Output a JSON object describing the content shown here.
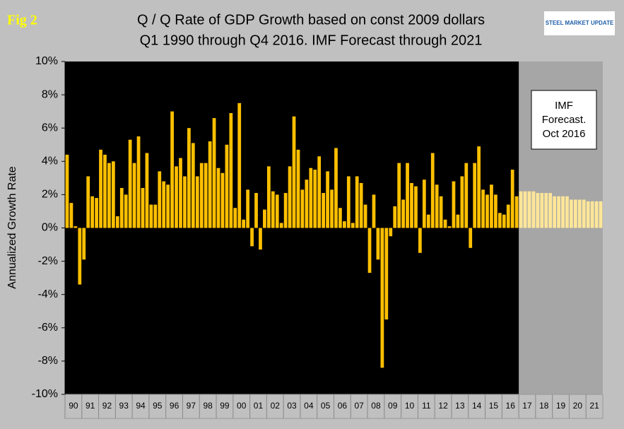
{
  "chart_data": {
    "type": "bar",
    "figure_label": "Fig 2",
    "logo": "STEEL MARKET UPDATE",
    "title": "Q / Q Rate of GDP Growth based on const 2009 dollars",
    "subtitle": "Q1 1990 through Q4 2016. IMF Forecast through 2021",
    "y_label": "Annualized Growth Rate",
    "annotation": [
      "IMF",
      "Forecast.",
      "Oct 2016"
    ],
    "ylim": [
      -10,
      10
    ],
    "yticks": [
      {
        "value": -10,
        "label": "-10%"
      },
      {
        "value": -8,
        "label": "-8%"
      },
      {
        "value": -6,
        "label": "-6%"
      },
      {
        "value": -4,
        "label": "-4%"
      },
      {
        "value": -2,
        "label": "-2%"
      },
      {
        "value": 0,
        "label": "0%"
      },
      {
        "value": 2,
        "label": "2%"
      },
      {
        "value": 4,
        "label": "4%"
      },
      {
        "value": 6,
        "label": "6%"
      },
      {
        "value": 8,
        "label": "8%"
      },
      {
        "value": 10,
        "label": "10%"
      }
    ],
    "categories": [
      "90",
      null,
      null,
      null,
      "91",
      null,
      null,
      null,
      "92",
      null,
      null,
      null,
      "93",
      null,
      null,
      null,
      "94",
      null,
      null,
      null,
      "95",
      null,
      null,
      null,
      "96",
      null,
      null,
      null,
      "97",
      null,
      null,
      null,
      "98",
      null,
      null,
      null,
      "99",
      null,
      null,
      null,
      "00",
      null,
      null,
      null,
      "01",
      null,
      null,
      null,
      "02",
      null,
      null,
      null,
      "03",
      null,
      null,
      null,
      "04",
      null,
      null,
      null,
      "05",
      null,
      null,
      null,
      "06",
      null,
      null,
      null,
      "07",
      null,
      null,
      null,
      "08",
      null,
      null,
      null,
      "09",
      null,
      null,
      null,
      "10",
      null,
      null,
      null,
      "11",
      null,
      null,
      null,
      "12",
      null,
      null,
      null,
      "13",
      null,
      null,
      null,
      "14",
      null,
      null,
      null,
      "15",
      null,
      null,
      null,
      "16",
      null,
      null,
      null,
      "17",
      null,
      null,
      null,
      "18",
      null,
      null,
      null,
      "19",
      null,
      null,
      null,
      "20",
      null,
      null,
      null,
      "21",
      null,
      null,
      null
    ],
    "series": [
      {
        "color": "#FFC000",
        "values": [
          4.4,
          1.5,
          0.1,
          -3.4,
          -1.9,
          3.1,
          1.9,
          1.8,
          4.7,
          4.4,
          3.9,
          4.0,
          0.7,
          2.4,
          2.0,
          5.3,
          3.9,
          5.5,
          2.4,
          4.5,
          1.4,
          1.4,
          3.4,
          2.8,
          2.6,
          7.0,
          3.7,
          4.2,
          3.1,
          6.0,
          5.1,
          3.1,
          3.9,
          3.9,
          5.2,
          6.6,
          3.6,
          3.3,
          5.0,
          6.9,
          1.2,
          7.5,
          0.5,
          2.3,
          -1.1,
          2.1,
          -1.3,
          1.1,
          3.7,
          2.2,
          2.0,
          0.3,
          2.1,
          3.7,
          6.7,
          4.7,
          2.3,
          2.9,
          3.6,
          3.5,
          4.3,
          2.1,
          3.4,
          2.3,
          4.8,
          1.2,
          0.4,
          3.1,
          0.3,
          3.1,
          2.7,
          1.4,
          -2.7,
          2.0,
          -1.9,
          -8.4,
          -5.5,
          -0.5,
          1.3,
          3.9,
          1.7,
          3.9,
          2.7,
          2.5,
          -1.5,
          2.9,
          0.8,
          4.5,
          2.6,
          1.9,
          0.5,
          0.1,
          2.8,
          0.8,
          3.1,
          3.9,
          -1.2,
          3.9,
          4.9,
          2.3,
          2.0,
          2.6,
          2.0,
          0.9,
          0.8,
          1.4,
          3.5,
          1.9,
          null,
          null,
          null,
          null,
          null,
          null,
          null,
          null,
          null,
          null,
          null,
          null,
          null,
          null,
          null,
          null,
          null,
          null,
          null,
          null
        ]
      },
      {
        "color": "#FFE699",
        "values": [
          null,
          null,
          null,
          null,
          null,
          null,
          null,
          null,
          null,
          null,
          null,
          null,
          null,
          null,
          null,
          null,
          null,
          null,
          null,
          null,
          null,
          null,
          null,
          null,
          null,
          null,
          null,
          null,
          null,
          null,
          null,
          null,
          null,
          null,
          null,
          null,
          null,
          null,
          null,
          null,
          null,
          null,
          null,
          null,
          null,
          null,
          null,
          null,
          null,
          null,
          null,
          null,
          null,
          null,
          null,
          null,
          null,
          null,
          null,
          null,
          null,
          null,
          null,
          null,
          null,
          null,
          null,
          null,
          null,
          null,
          null,
          null,
          null,
          null,
          null,
          null,
          null,
          null,
          null,
          null,
          null,
          null,
          null,
          null,
          null,
          null,
          null,
          null,
          null,
          null,
          null,
          null,
          null,
          null,
          null,
          null,
          null,
          null,
          null,
          null,
          null,
          null,
          null,
          null,
          null,
          null,
          null,
          null,
          2.2,
          2.2,
          2.2,
          2.2,
          2.1,
          2.1,
          2.1,
          2.1,
          1.9,
          1.9,
          1.9,
          1.9,
          1.7,
          1.7,
          1.7,
          1.7,
          1.6,
          1.6,
          1.6,
          1.6
        ]
      }
    ]
  }
}
